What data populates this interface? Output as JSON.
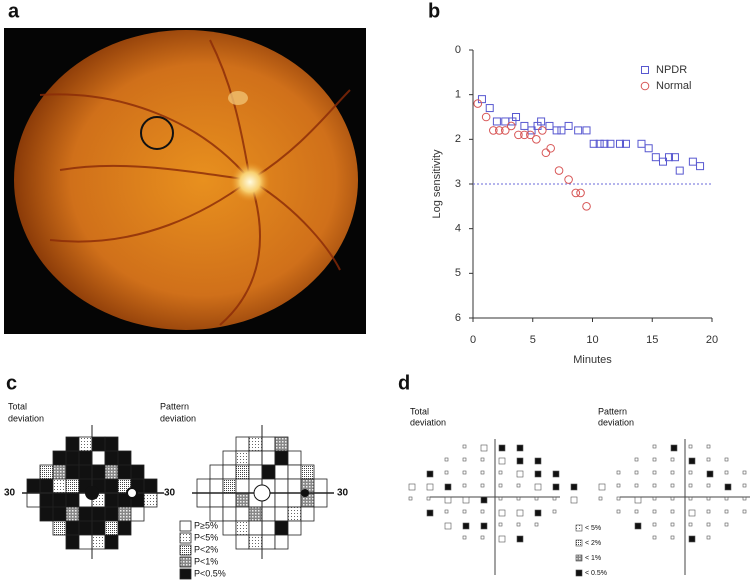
{
  "panel_labels": [
    "a",
    "b",
    "c",
    "d"
  ],
  "chart_data": {
    "type": "scatter",
    "xlabel": "Minutes",
    "ylabel": "Log sensitivity",
    "xlim": [
      0,
      20
    ],
    "ylim": [
      0,
      6
    ],
    "xticks": [
      0,
      5,
      10,
      15,
      20
    ],
    "yticks": [
      0,
      1,
      2,
      3,
      4,
      5,
      6
    ],
    "y_inverted": true,
    "reference_line": 3,
    "reference_color": "#6a6ad8",
    "legend": "upper right",
    "series": [
      {
        "name": "NPDR",
        "color": "#5858d0",
        "marker": "square",
        "x": [
          0.75,
          1.4,
          2.0,
          2.7,
          3.3,
          3.6,
          4.3,
          4.9,
          5.4,
          5.7,
          6.4,
          7.0,
          7.4,
          8.0,
          8.8,
          9.5,
          10.1,
          10.6,
          11.0,
          11.5,
          12.3,
          12.8,
          14.1,
          14.7,
          15.3,
          15.9,
          16.4,
          16.9,
          17.3,
          18.4,
          19.0
        ],
        "values": [
          1.1,
          1.3,
          1.6,
          1.6,
          1.6,
          1.5,
          1.7,
          1.8,
          1.7,
          1.6,
          1.7,
          1.8,
          1.8,
          1.7,
          1.8,
          1.8,
          2.1,
          2.1,
          2.1,
          2.1,
          2.1,
          2.1,
          2.1,
          2.2,
          2.4,
          2.5,
          2.4,
          2.4,
          2.7,
          2.5,
          2.6
        ]
      },
      {
        "name": "Normal",
        "color": "#d85858",
        "marker": "circle",
        "x": [
          0.4,
          1.1,
          1.7,
          2.2,
          2.7,
          3.2,
          3.8,
          4.3,
          4.8,
          5.3,
          5.8,
          6.1,
          6.5,
          7.2,
          8.0,
          8.6,
          9.0,
          9.5
        ],
        "values": [
          1.2,
          1.5,
          1.8,
          1.8,
          1.8,
          1.7,
          1.9,
          1.9,
          1.9,
          2.0,
          1.8,
          2.3,
          2.2,
          2.7,
          2.9,
          3.2,
          3.2,
          3.5
        ]
      }
    ]
  },
  "panel_c": {
    "left_title": [
      "Total",
      "deviation"
    ],
    "right_title": [
      "Pattern",
      "deviation"
    ],
    "axis_labels": [
      "30",
      "30",
      "30"
    ],
    "legend": [
      "P≥5%",
      "P<5%",
      "P<2%",
      "P<1%",
      "P<0.5%"
    ]
  },
  "panel_d": {
    "left_title": [
      "Total",
      "deviation"
    ],
    "right_title": [
      "Pattern",
      "deviation"
    ],
    "legend": [
      "< 5%",
      "< 2%",
      "< 1%",
      "< 0.5%"
    ]
  }
}
